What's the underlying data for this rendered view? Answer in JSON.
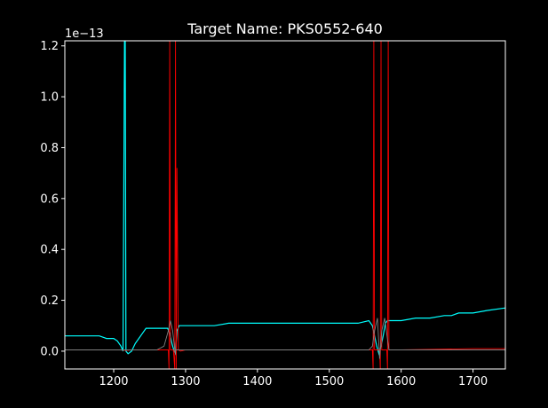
{
  "chart_data": {
    "type": "line",
    "title": "Target Name: PKS0552-640",
    "xlabel": "",
    "ylabel": "",
    "y_offset_label": "1e−13",
    "xlim": [
      1132,
      1745
    ],
    "ylim": [
      -0.07,
      1.22
    ],
    "x_ticks": [
      1200,
      1300,
      1400,
      1500,
      1600,
      1700
    ],
    "y_ticks": [
      0.0,
      0.2,
      0.4,
      0.6,
      0.8,
      1.0,
      1.2
    ],
    "x_tick_labels": [
      "1200",
      "1300",
      "1400",
      "1500",
      "1600",
      "1700"
    ],
    "y_tick_labels": [
      "0.0",
      "0.2",
      "0.4",
      "0.6",
      "0.8",
      "1.0",
      "1.2"
    ],
    "grid": false,
    "legend": "none",
    "series": [
      {
        "color": "#00ffff",
        "x": [
          1132,
          1140,
          1150,
          1160,
          1170,
          1180,
          1190,
          1200,
          1205,
          1210,
          1213,
          1215,
          1216,
          1217,
          1220,
          1225,
          1230,
          1235,
          1240,
          1245,
          1250,
          1255,
          1260,
          1265,
          1270,
          1275,
          1278,
          1281,
          1284,
          1286,
          1288,
          1291,
          1295,
          1300,
          1320,
          1340,
          1360,
          1380,
          1400,
          1420,
          1440,
          1460,
          1480,
          1500,
          1520,
          1540,
          1555,
          1560,
          1563,
          1566,
          1569,
          1572,
          1575,
          1578,
          1581,
          1585,
          1600,
          1620,
          1640,
          1660,
          1670,
          1680,
          1700,
          1720,
          1745
        ],
        "y": [
          0.06,
          0.06,
          0.06,
          0.06,
          0.06,
          0.06,
          0.05,
          0.05,
          0.04,
          0.02,
          0.0,
          1.22,
          1.22,
          0.0,
          -0.01,
          0.0,
          0.03,
          0.05,
          0.07,
          0.09,
          0.09,
          0.09,
          0.09,
          0.09,
          0.09,
          0.09,
          0.07,
          0.03,
          0.0,
          -0.01,
          0.08,
          0.1,
          0.1,
          0.1,
          0.1,
          0.1,
          0.11,
          0.11,
          0.11,
          0.11,
          0.11,
          0.11,
          0.11,
          0.11,
          0.11,
          0.11,
          0.12,
          0.1,
          0.06,
          0.02,
          -0.01,
          0.02,
          0.06,
          0.11,
          0.12,
          0.12,
          0.12,
          0.13,
          0.13,
          0.14,
          0.14,
          0.15,
          0.15,
          0.16,
          0.17
        ]
      },
      {
        "color": "#ff0000",
        "x": [
          1132,
          1200,
          1210,
          1214,
          1217,
          1225,
          1250,
          1270,
          1276,
          1277,
          1278,
          1279,
          1283,
          1285,
          1286,
          1287,
          1288,
          1290,
          1293,
          1300,
          1400,
          1500,
          1555,
          1560,
          1561,
          1562,
          1563,
          1570,
          1571,
          1572,
          1573,
          1578,
          1580,
          1581,
          1582,
          1583,
          1600,
          1700,
          1745
        ],
        "y": [
          0.005,
          0.005,
          0.005,
          0.004,
          0.003,
          0.005,
          0.005,
          0.005,
          0.005,
          -0.07,
          1.22,
          0.005,
          0.005,
          -0.07,
          1.22,
          -0.07,
          0.72,
          0.005,
          0.0,
          0.005,
          0.005,
          0.005,
          0.005,
          0.005,
          -0.07,
          1.22,
          0.005,
          0.005,
          -0.07,
          1.22,
          0.005,
          0.005,
          0.005,
          -0.07,
          1.22,
          0.005,
          0.005,
          0.01,
          0.01
        ]
      },
      {
        "color": "#808080",
        "x": [
          1132,
          1260,
          1270,
          1276,
          1279,
          1282,
          1285,
          1295,
          1500,
          1555,
          1560,
          1563,
          1567,
          1570,
          1573,
          1577,
          1583,
          1745
        ],
        "y": [
          0.005,
          0.005,
          0.02,
          0.08,
          0.12,
          0.08,
          0.005,
          0.005,
          0.005,
          0.005,
          0.02,
          0.08,
          0.13,
          -0.03,
          0.08,
          0.13,
          0.005,
          0.005
        ]
      }
    ]
  }
}
